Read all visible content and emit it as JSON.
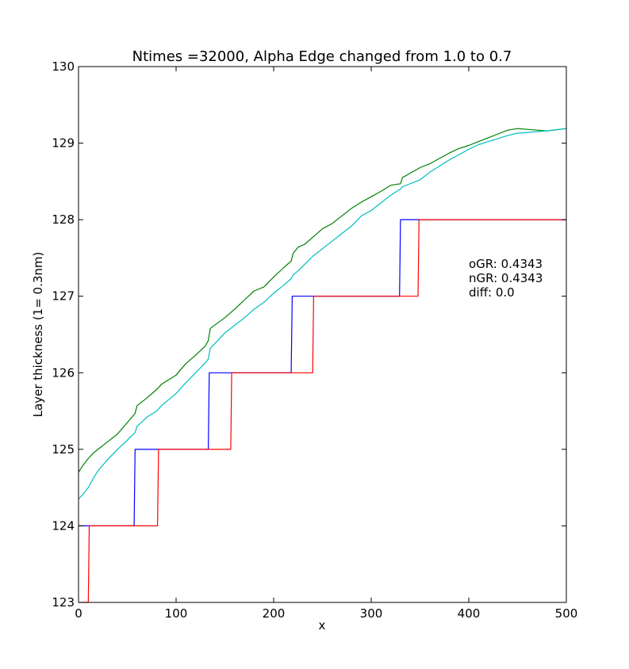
{
  "chart_data": {
    "type": "line",
    "title": "Ntimes =32000, Alpha Edge changed from 1.0 to 0.7",
    "xlabel": "x",
    "ylabel": "Layer thickness (1= 0.3nm)",
    "xlim": [
      0,
      500
    ],
    "ylim": [
      123,
      130
    ],
    "xticks": [
      0,
      100,
      200,
      300,
      400,
      500
    ],
    "yticks": [
      123,
      124,
      125,
      126,
      127,
      128,
      129,
      130
    ],
    "grid": false,
    "annotations": [
      "oGR: 0.4343",
      "nGR: 0.4343",
      "diff: 0.0"
    ],
    "series": [
      {
        "color": "#0000ff",
        "x": [
          0,
          57,
          58,
          133,
          134,
          218,
          219,
          329,
          330,
          500
        ],
        "y": [
          124,
          124,
          125,
          125,
          126,
          126,
          127,
          127,
          128,
          128
        ]
      },
      {
        "color": "#ff0000",
        "x": [
          0,
          10,
          11,
          81,
          82,
          156,
          157,
          240,
          241,
          348,
          349,
          500
        ],
        "y": [
          123,
          123,
          124,
          124,
          125,
          125,
          126,
          126,
          127,
          127,
          128,
          128
        ]
      },
      {
        "color": "#008000",
        "x": [
          0,
          5,
          10,
          15,
          20,
          30,
          40,
          50,
          58,
          60,
          70,
          80,
          85,
          100,
          110,
          120,
          130,
          133,
          135,
          150,
          160,
          170,
          180,
          190,
          200,
          210,
          218,
          220,
          225,
          232,
          240,
          250,
          260,
          270,
          280,
          290,
          300,
          310,
          320,
          330,
          332,
          350,
          360,
          370,
          380,
          390,
          400,
          410,
          420,
          430,
          440,
          450,
          460,
          470,
          480,
          500
        ],
        "y": [
          124.7,
          124.8,
          124.88,
          124.95,
          125.0,
          125.1,
          125.2,
          125.35,
          125.47,
          125.57,
          125.67,
          125.78,
          125.85,
          125.97,
          126.12,
          126.23,
          126.35,
          126.42,
          126.58,
          126.72,
          126.83,
          126.95,
          127.07,
          127.12,
          127.25,
          127.37,
          127.46,
          127.56,
          127.64,
          127.68,
          127.77,
          127.88,
          127.95,
          128.05,
          128.15,
          128.23,
          128.3,
          128.37,
          128.45,
          128.47,
          128.55,
          128.68,
          128.73,
          128.8,
          128.87,
          128.93,
          128.97,
          129.02,
          129.07,
          129.12,
          129.17,
          129.19,
          129.18,
          129.17,
          129.16,
          129.19
        ]
      },
      {
        "color": "#00bfbf",
        "x": [
          0,
          5,
          10,
          15,
          20,
          30,
          40,
          50,
          58,
          60,
          70,
          80,
          85,
          100,
          110,
          120,
          130,
          133,
          135,
          150,
          160,
          170,
          180,
          190,
          200,
          210,
          218,
          220,
          225,
          232,
          240,
          250,
          260,
          270,
          280,
          290,
          300,
          310,
          320,
          330,
          332,
          350,
          360,
          370,
          380,
          390,
          400,
          410,
          420,
          430,
          440,
          450,
          460,
          470,
          480,
          500
        ],
        "y": [
          124.35,
          124.42,
          124.5,
          124.62,
          124.72,
          124.87,
          125.0,
          125.12,
          125.22,
          125.3,
          125.42,
          125.5,
          125.57,
          125.73,
          125.87,
          126.0,
          126.13,
          126.18,
          126.32,
          126.52,
          126.62,
          126.72,
          126.83,
          126.92,
          127.04,
          127.14,
          127.23,
          127.28,
          127.33,
          127.42,
          127.52,
          127.62,
          127.72,
          127.82,
          127.92,
          128.05,
          128.12,
          128.22,
          128.32,
          128.4,
          128.43,
          128.52,
          128.62,
          128.7,
          128.78,
          128.85,
          128.92,
          128.98,
          129.02,
          129.06,
          129.1,
          129.13,
          129.14,
          129.15,
          129.16,
          129.19
        ]
      }
    ]
  }
}
